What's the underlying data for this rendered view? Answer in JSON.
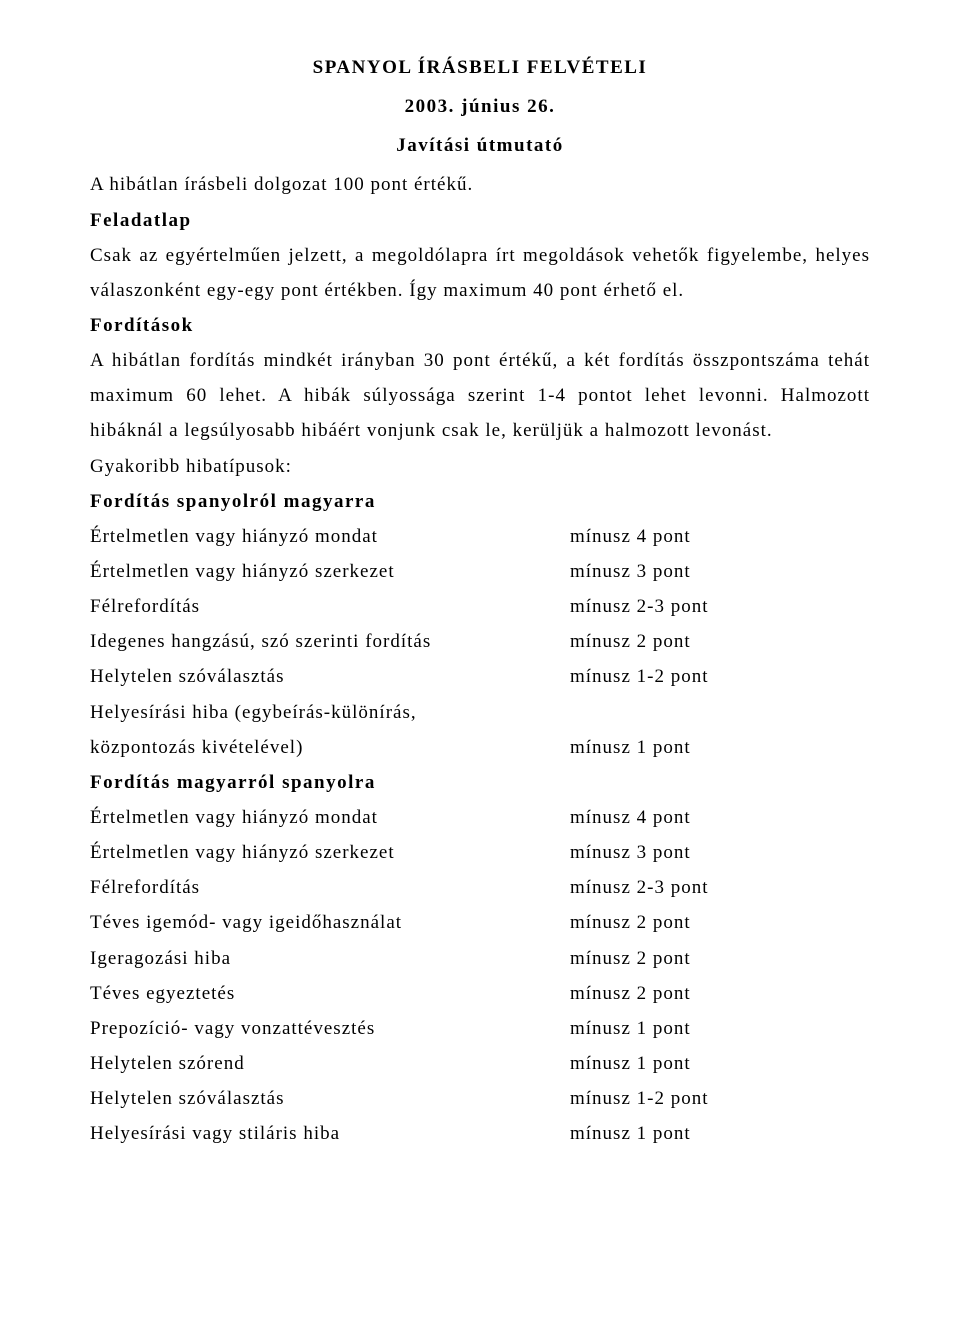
{
  "header": {
    "title": "SPANYOL ÍRÁSBELI FELVÉTELI",
    "date": "2003. június 26.",
    "subtitle": "Javítási útmutató"
  },
  "intro": {
    "line1": "A hibátlan írásbeli dolgozat 100 pont értékű.",
    "heading_feladatlap": "Feladatlap",
    "feladatlap_text": "Csak az egyértelműen jelzett, a megoldólapra írt megoldások vehetők figyelembe, helyes válaszonként egy-egy pont értékben. Így maximum 40 pont érhető el.",
    "heading_forditasok": "Fordítások",
    "forditasok_text": "A hibátlan fordítás mindkét irányban 30 pont értékű, a két fordítás összpontszáma tehát maximum 60 lehet. A hibák súlyossága szerint 1-4 pontot lehet levonni. Halmozott hibáknál a legsúlyosabb hibáért vonjunk csak le, kerüljük a halmozott levonást.",
    "gyakoribb": "Gyakoribb hibatípusok:"
  },
  "section1": {
    "heading": "Fordítás spanyolról magyarra",
    "items": {
      "0": {
        "label": "Értelmetlen vagy hiányzó mondat",
        "value": "mínusz 4 pont"
      },
      "1": {
        "label": "Értelmetlen vagy hiányzó szerkezet",
        "value": "mínusz 3 pont"
      },
      "2": {
        "label": "Félrefordítás",
        "value": "mínusz 2-3 pont"
      },
      "3": {
        "label": "Idegenes hangzású, szó szerinti fordítás",
        "value": "mínusz 2 pont"
      },
      "4": {
        "label": "Helytelen szóválasztás",
        "value": "mínusz 1-2 pont"
      },
      "5a": {
        "label": "Helyesírási hiba (egybeírás-különírás,"
      },
      "5b": {
        "label": "központozás kivételével)",
        "value": "mínusz 1 pont"
      }
    }
  },
  "section2": {
    "heading": "Fordítás magyarról spanyolra",
    "items": {
      "0": {
        "label": "Értelmetlen vagy hiányzó mondat",
        "value": "mínusz 4 pont"
      },
      "1": {
        "label": "Értelmetlen vagy hiányzó szerkezet",
        "value": "mínusz 3 pont"
      },
      "2": {
        "label": "Félrefordítás",
        "value": "mínusz 2-3 pont"
      },
      "3": {
        "label": "Téves igemód- vagy igeidőhasználat",
        "value": "mínusz 2 pont"
      },
      "4": {
        "label": "Igeragozási hiba",
        "value": "mínusz 2 pont"
      },
      "5": {
        "label": "Téves egyeztetés",
        "value": "mínusz 2 pont"
      },
      "6": {
        "label": "Prepozíció- vagy vonzattévesztés",
        "value": "mínusz 1 pont"
      },
      "7": {
        "label": "Helytelen szórend",
        "value": "mínusz 1 pont"
      },
      "8": {
        "label": "Helytelen szóválasztás",
        "value": "mínusz 1-2 pont"
      },
      "9": {
        "label": "Helyesírási vagy stiláris hiba",
        "value": "mínusz 1 pont"
      }
    }
  }
}
